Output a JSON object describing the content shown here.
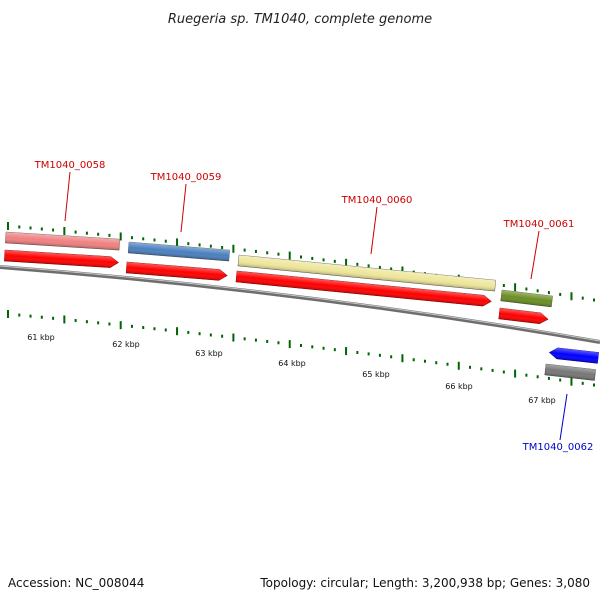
{
  "title": "Ruegeria sp. TM1040, complete genome",
  "footer": {
    "accession": "Accession: NC_008044",
    "summary": "Topology: circular; Length: 3,200,938 bp; Genes: 3,080"
  },
  "colors": {
    "label_forward": "#cc0000",
    "label_reverse": "#0000cc",
    "cds_forward": "#ff0000",
    "cds_reverse": "#0000ff",
    "backbone": "#888888",
    "tick": "#006400"
  },
  "genes": [
    {
      "id": "TM1040_0058",
      "label": "TM1040_0058",
      "strand": "+",
      "feature_color": "#f08080"
    },
    {
      "id": "TM1040_0059",
      "label": "TM1040_0059",
      "strand": "+",
      "feature_color": "#4a7fbf"
    },
    {
      "id": "TM1040_0060",
      "label": "TM1040_0060",
      "strand": "+",
      "feature_color": "#eee69a"
    },
    {
      "id": "TM1040_0061",
      "label": "TM1040_0061",
      "strand": "+",
      "feature_color": "#6b8e23"
    },
    {
      "id": "TM1040_0062",
      "label": "TM1040_0062",
      "strand": "-",
      "feature_color": "#777777"
    }
  ],
  "scale_labels": [
    "61 kbp",
    "62 kbp",
    "63 kbp",
    "64 kbp",
    "65 kbp",
    "66 kbp",
    "67 kbp"
  ]
}
